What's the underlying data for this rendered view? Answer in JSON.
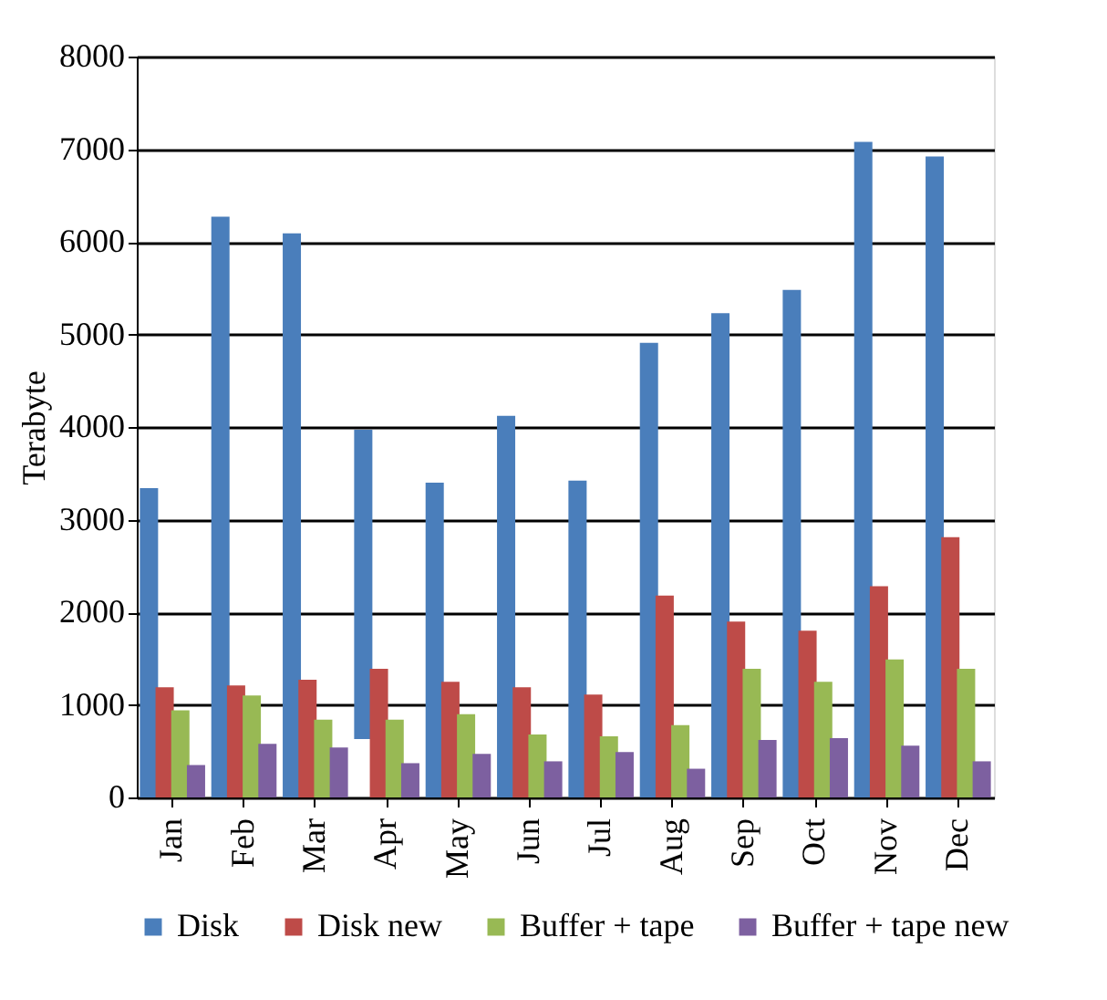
{
  "chart_data": {
    "type": "bar",
    "ylabel": "Terabyte",
    "categories": [
      "Jan",
      "Feb",
      "Mar",
      "Apr",
      "May",
      "Jun",
      "Jul",
      "Aug",
      "Sep",
      "Oct",
      "Nov",
      "Dec"
    ],
    "series": [
      {
        "name": "Disk",
        "color": "#4a7ebb",
        "values": [
          3340,
          6270,
          6090,
          3340,
          3400,
          4120,
          3420,
          4910,
          5230,
          5480,
          7080,
          6920
        ],
        "base": [
          0,
          0,
          0,
          630,
          0,
          0,
          0,
          0,
          0,
          0,
          0,
          0
        ]
      },
      {
        "name": "Disk new",
        "color": "#be4b48",
        "values": [
          1190,
          1210,
          1270,
          1390,
          1250,
          1190,
          1110,
          2180,
          1900,
          1800,
          2280,
          2810
        ]
      },
      {
        "name": "Buffer + tape",
        "color": "#98b954",
        "values": [
          940,
          1100,
          840,
          840,
          900,
          680,
          660,
          780,
          1390,
          1250,
          1490,
          1390
        ]
      },
      {
        "name": "Buffer + tape new",
        "color": "#7d60a0",
        "values": [
          350,
          580,
          540,
          370,
          470,
          390,
          490,
          310,
          620,
          640,
          560,
          390
        ]
      }
    ],
    "ylim": [
      0,
      8000
    ],
    "yticks": [
      0,
      1000,
      2000,
      3000,
      4000,
      5000,
      6000,
      7000,
      8000
    ],
    "grid": "y",
    "legend": "bottom"
  }
}
